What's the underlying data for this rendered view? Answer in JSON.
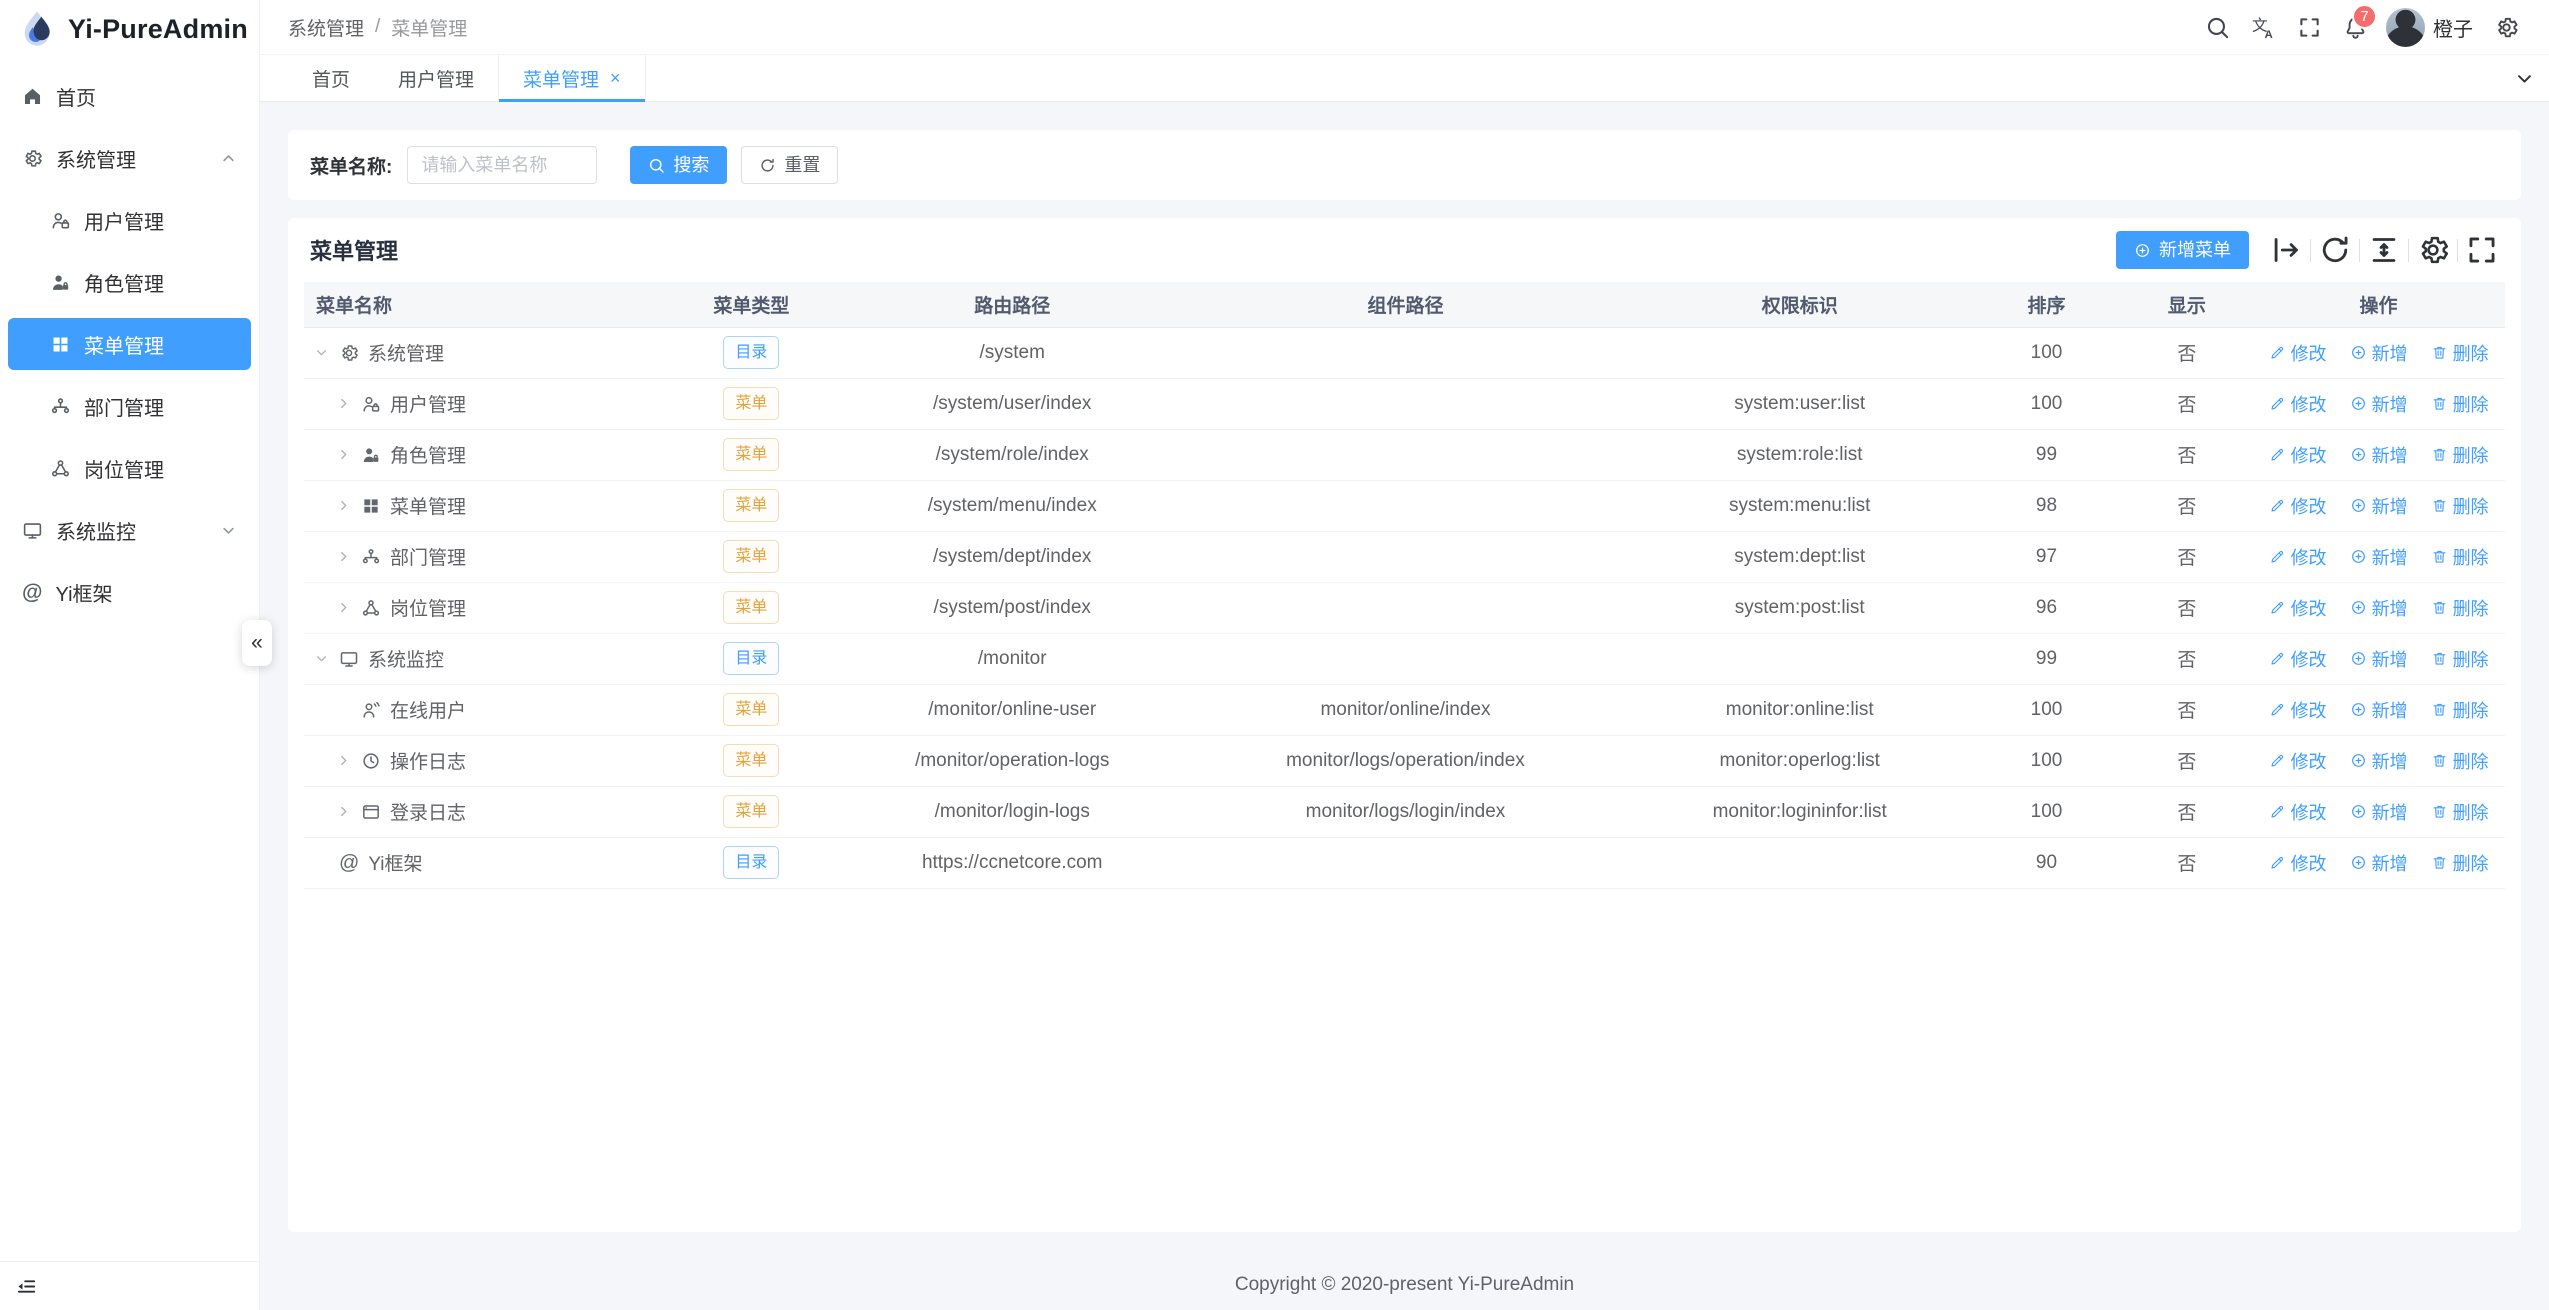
{
  "app": {
    "name": "Yi-PureAdmin"
  },
  "colors": {
    "primary": "#409eff",
    "warning": "#e6a23c",
    "danger_badge": "#f56c6c"
  },
  "sidebar": {
    "collapse_fab": "«",
    "items": [
      {
        "icon": "home",
        "label": "首页",
        "level": 0,
        "active": false,
        "arrow": ""
      },
      {
        "icon": "gear",
        "label": "系统管理",
        "level": 0,
        "active": false,
        "arrow": "up"
      },
      {
        "icon": "user-lock",
        "label": "用户管理",
        "level": 1,
        "active": false,
        "arrow": ""
      },
      {
        "icon": "user-fill",
        "label": "角色管理",
        "level": 1,
        "active": false,
        "arrow": ""
      },
      {
        "icon": "grid",
        "label": "菜单管理",
        "level": 1,
        "active": true,
        "arrow": ""
      },
      {
        "icon": "branch",
        "label": "部门管理",
        "level": 1,
        "active": false,
        "arrow": ""
      },
      {
        "icon": "nodes",
        "label": "岗位管理",
        "level": 1,
        "active": false,
        "arrow": ""
      },
      {
        "icon": "monitor",
        "label": "系统监控",
        "level": 0,
        "active": false,
        "arrow": "down"
      },
      {
        "icon": "at",
        "label": "Yi框架",
        "level": 0,
        "active": false,
        "arrow": ""
      }
    ]
  },
  "header": {
    "breadcrumb": [
      "系统管理",
      "菜单管理"
    ],
    "separator": "/",
    "notification_count": "7",
    "username": "橙子"
  },
  "tabs": [
    {
      "label": "首页",
      "active": false,
      "closable": false
    },
    {
      "label": "用户管理",
      "active": false,
      "closable": false
    },
    {
      "label": "菜单管理",
      "active": true,
      "closable": true
    }
  ],
  "search": {
    "label": "菜单名称:",
    "placeholder": "请输入菜单名称",
    "search_button": "搜索",
    "reset_button": "重置"
  },
  "card": {
    "title": "菜单管理",
    "add_button": "新增菜单",
    "toolbar_icons": [
      "arrow-bar",
      "refresh",
      "density",
      "gear",
      "expand"
    ]
  },
  "table": {
    "columns": [
      "菜单名称",
      "菜单类型",
      "路由路径",
      "组件路径",
      "权限标识",
      "排序",
      "显示",
      "操作"
    ],
    "tag_types": {
      "dir": "目录",
      "menu": "菜单"
    },
    "ops": [
      {
        "icon": "edit",
        "label": "修改"
      },
      {
        "icon": "circle-plus",
        "label": "新增"
      },
      {
        "icon": "trash",
        "label": "删除"
      }
    ],
    "rows": [
      {
        "level": 0,
        "expand": "down",
        "icon": "gear",
        "name": "系统管理",
        "type": "dir",
        "route": "/system",
        "component": "",
        "perm": "",
        "sort": "100",
        "visible": "否"
      },
      {
        "level": 1,
        "expand": "right",
        "icon": "user-lock",
        "name": "用户管理",
        "type": "menu",
        "route": "/system/user/index",
        "component": "",
        "perm": "system:user:list",
        "sort": "100",
        "visible": "否"
      },
      {
        "level": 1,
        "expand": "right",
        "icon": "user-fill",
        "name": "角色管理",
        "type": "menu",
        "route": "/system/role/index",
        "component": "",
        "perm": "system:role:list",
        "sort": "99",
        "visible": "否"
      },
      {
        "level": 1,
        "expand": "right",
        "icon": "grid",
        "name": "菜单管理",
        "type": "menu",
        "route": "/system/menu/index",
        "component": "",
        "perm": "system:menu:list",
        "sort": "98",
        "visible": "否"
      },
      {
        "level": 1,
        "expand": "right",
        "icon": "branch",
        "name": "部门管理",
        "type": "menu",
        "route": "/system/dept/index",
        "component": "",
        "perm": "system:dept:list",
        "sort": "97",
        "visible": "否"
      },
      {
        "level": 1,
        "expand": "right",
        "icon": "nodes",
        "name": "岗位管理",
        "type": "menu",
        "route": "/system/post/index",
        "component": "",
        "perm": "system:post:list",
        "sort": "96",
        "visible": "否"
      },
      {
        "level": 0,
        "expand": "down",
        "icon": "monitor",
        "name": "系统监控",
        "type": "dir",
        "route": "/monitor",
        "component": "",
        "perm": "",
        "sort": "99",
        "visible": "否"
      },
      {
        "level": 1,
        "expand": "none",
        "icon": "user-online",
        "name": "在线用户",
        "type": "menu",
        "route": "/monitor/online-user",
        "component": "monitor/online/index",
        "perm": "monitor:online:list",
        "sort": "100",
        "visible": "否"
      },
      {
        "level": 1,
        "expand": "right",
        "icon": "clock",
        "name": "操作日志",
        "type": "menu",
        "route": "/monitor/operation-logs",
        "component": "monitor/logs/operation/index",
        "perm": "monitor:operlog:list",
        "sort": "100",
        "visible": "否"
      },
      {
        "level": 1,
        "expand": "right",
        "icon": "window",
        "name": "登录日志",
        "type": "menu",
        "route": "/monitor/login-logs",
        "component": "monitor/logs/login/index",
        "perm": "monitor:logininfor:list",
        "sort": "100",
        "visible": "否"
      },
      {
        "level": 0,
        "expand": "none",
        "icon": "at",
        "name": "Yi框架",
        "type": "dir",
        "route": "https://ccnetcore.com",
        "component": "",
        "perm": "",
        "sort": "90",
        "visible": "否"
      }
    ]
  },
  "footer": {
    "copyright": "Copyright © 2020-present Yi-PureAdmin"
  }
}
